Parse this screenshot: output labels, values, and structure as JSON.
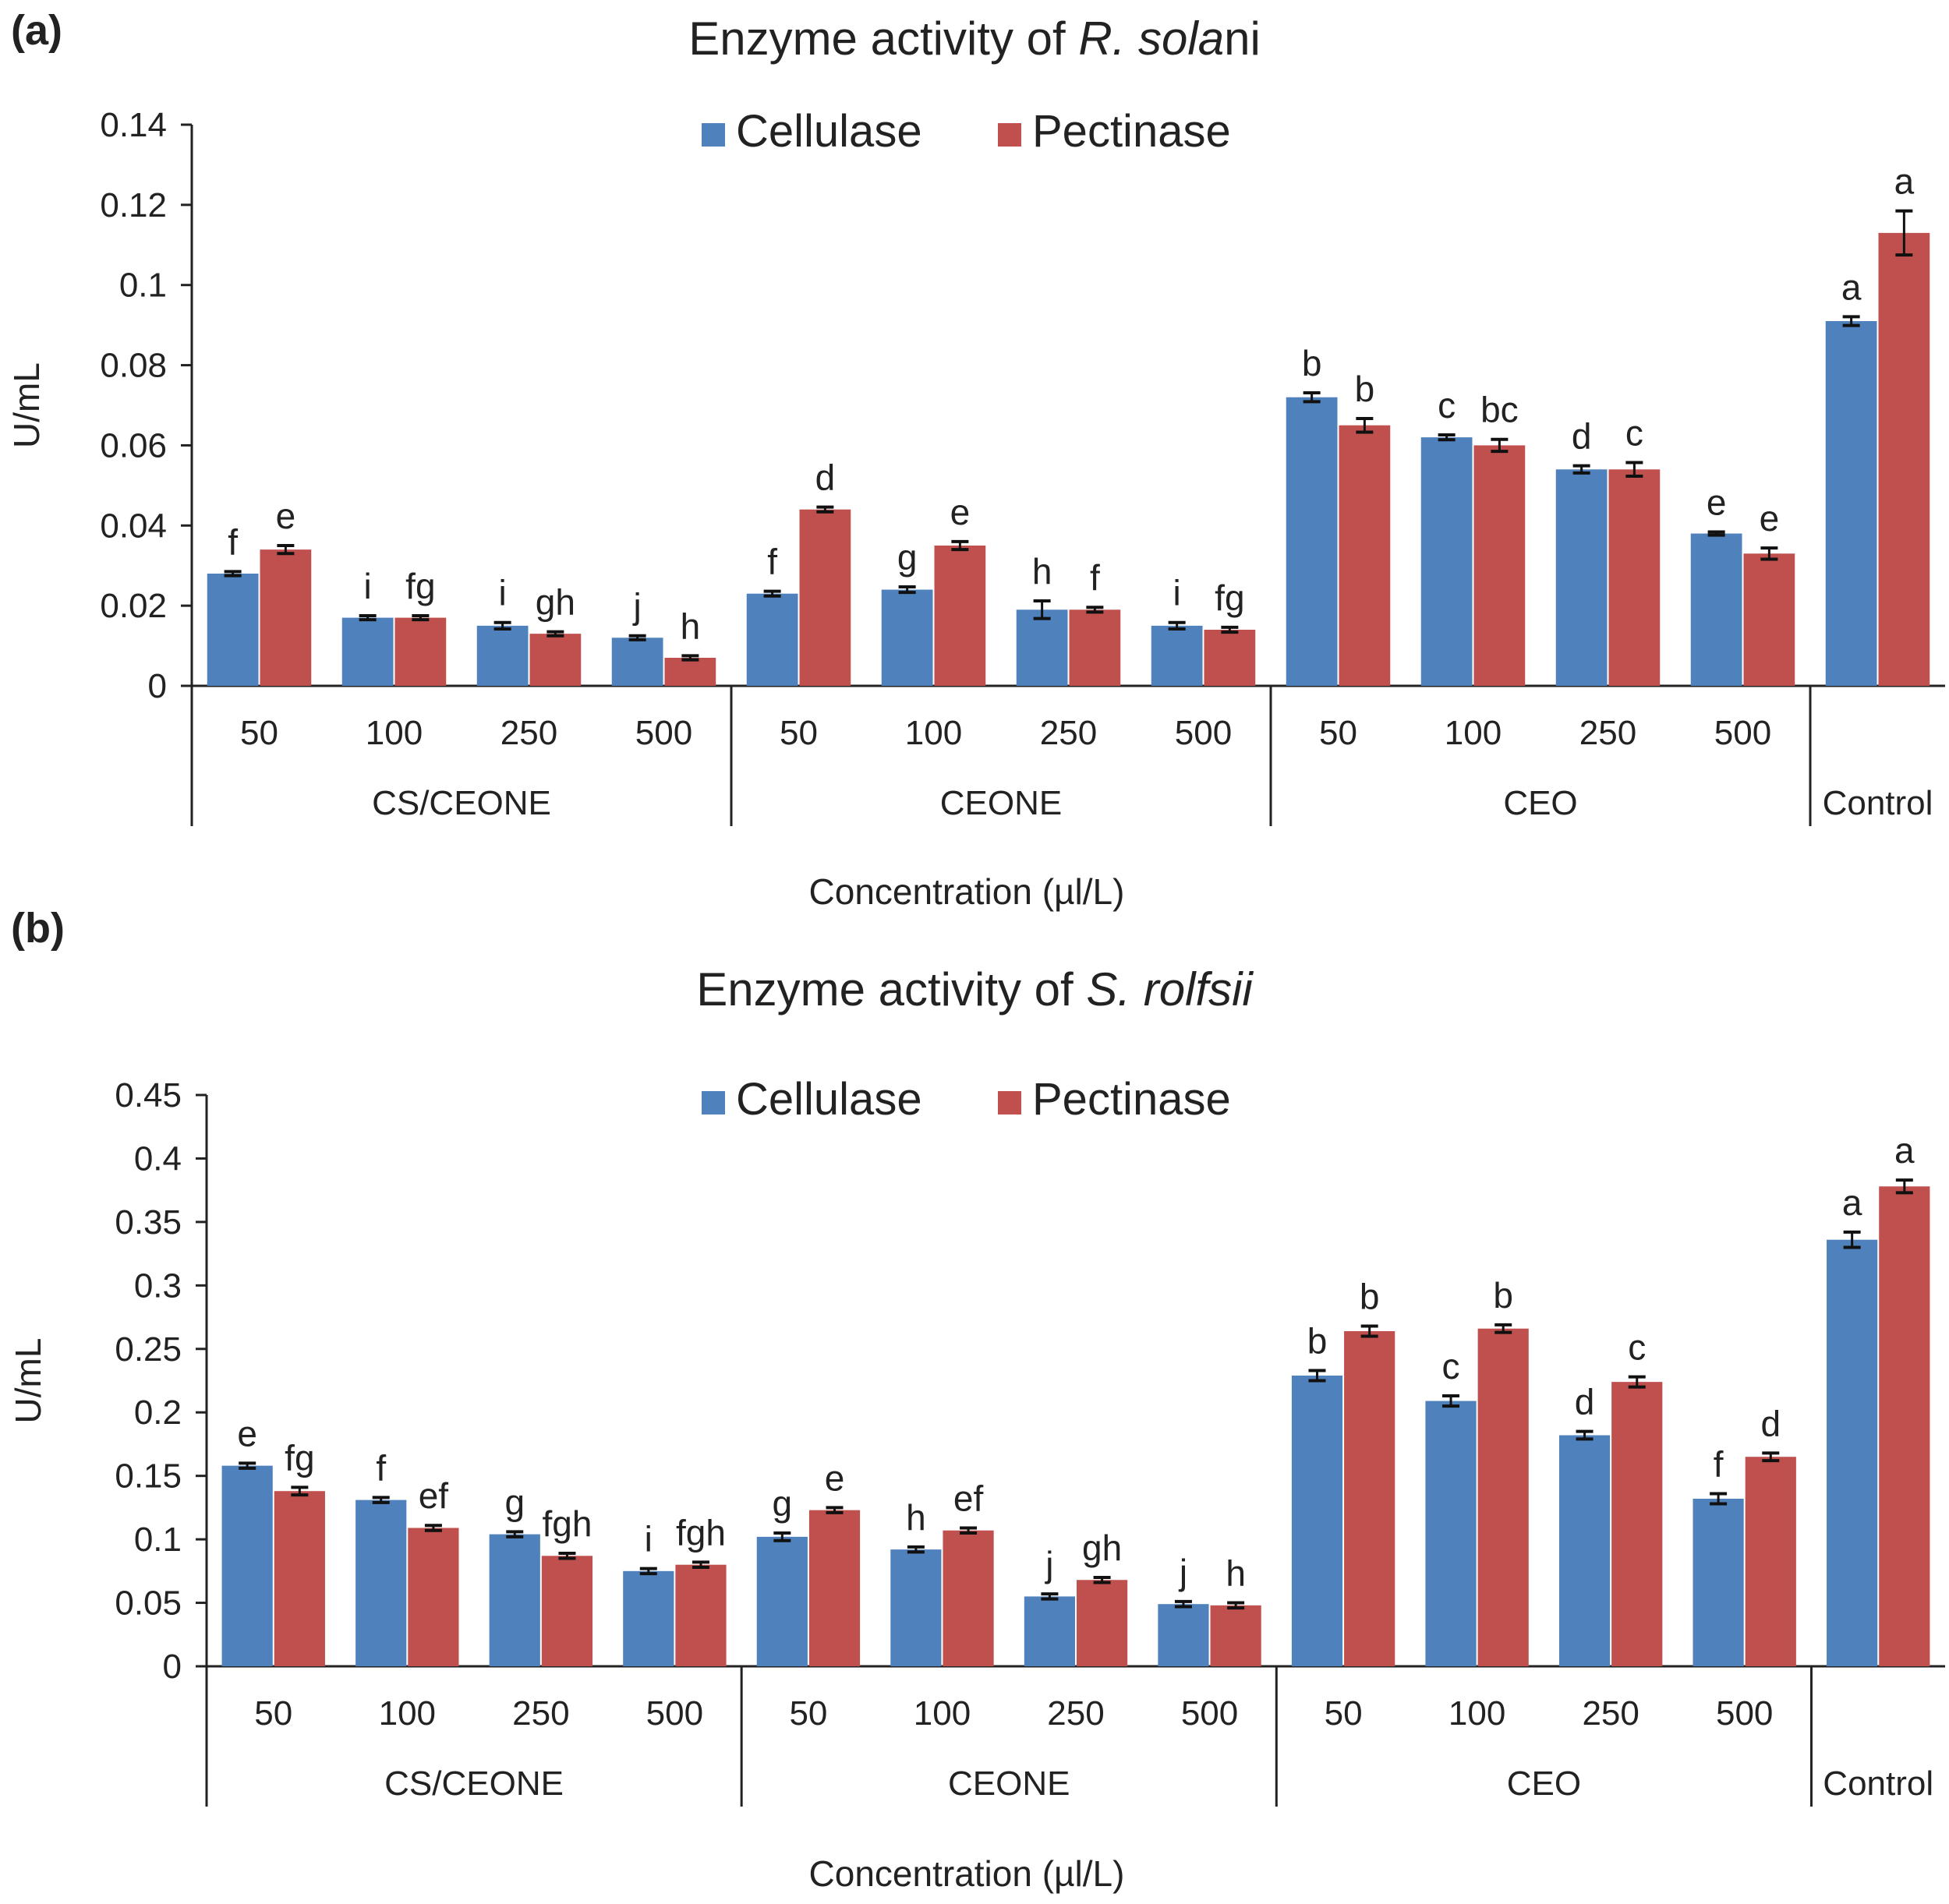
{
  "panels": [
    {
      "label": "(a)",
      "title_prefix": "Enzyme activity of ",
      "title_italic_1": "R. sola",
      "title_suffix": "ni",
      "ylabel": "U/mL",
      "xlabel": "Concentration (µl/L)"
    },
    {
      "label": "(b)",
      "title_prefix": "Enzyme activity of ",
      "title_italic_1": "S. rolfsii",
      "title_suffix": "",
      "ylabel": "U/mL",
      "xlabel": "Concentration (µl/L)"
    }
  ],
  "colors": {
    "cellulase": "#4F81BD",
    "pectinase": "#C0504D"
  },
  "chart_data": [
    {
      "type": "bar",
      "title": "Enzyme activity of R. solani",
      "xlabel": "Concentration (µl/L)",
      "ylabel": "U/mL",
      "ylim": [
        0,
        0.14
      ],
      "yticks": [
        "0",
        "0.02",
        "0.04",
        "0.06",
        "0.08",
        "0.1",
        "0.12",
        "0.14"
      ],
      "legend_position": "top-center",
      "groups": [
        {
          "name": "CS/CEONE",
          "categories": [
            "50",
            "100",
            "250",
            "500"
          ]
        },
        {
          "name": "CEONE",
          "categories": [
            "50",
            "100",
            "250",
            "500"
          ]
        },
        {
          "name": "CEO",
          "categories": [
            "50",
            "100",
            "250",
            "500"
          ]
        },
        {
          "name": "Control",
          "categories": [
            ""
          ]
        }
      ],
      "series": [
        {
          "name": "Cellulase",
          "values": [
            0.028,
            0.017,
            0.015,
            0.012,
            0.023,
            0.024,
            0.019,
            0.015,
            0.072,
            0.062,
            0.054,
            0.038,
            0.091
          ],
          "errors": [
            0.0005,
            0.0005,
            0.0008,
            0.0005,
            0.0006,
            0.0007,
            0.0022,
            0.0008,
            0.0011,
            0.0006,
            0.0009,
            0.0004,
            0.0011
          ],
          "labels": [
            "f",
            "i",
            "i",
            "j",
            "f",
            "g",
            "h",
            "i",
            "b",
            "c",
            "d",
            "e",
            "a"
          ]
        },
        {
          "name": "Pectinase",
          "values": [
            0.034,
            0.017,
            0.013,
            0.007,
            0.044,
            0.035,
            0.019,
            0.014,
            0.065,
            0.06,
            0.054,
            0.033,
            0.113
          ],
          "errors": [
            0.001,
            0.0005,
            0.0005,
            0.0005,
            0.0006,
            0.001,
            0.0006,
            0.0006,
            0.0017,
            0.0015,
            0.0017,
            0.0014,
            0.0055
          ],
          "labels": [
            "e",
            "fg",
            "gh",
            "h",
            "d",
            "e",
            "f",
            "fg",
            "b",
            "bc",
            "c",
            "e",
            "a"
          ]
        }
      ]
    },
    {
      "type": "bar",
      "title": "Enzyme activity of S. rolfsii",
      "xlabel": "Concentration (µl/L)",
      "ylabel": "U/mL",
      "ylim": [
        0,
        0.45
      ],
      "yticks": [
        "0",
        "0.05",
        "0.1",
        "0.15",
        "0.2",
        "0.25",
        "0.3",
        "0.35",
        "0.4",
        "0.45"
      ],
      "legend_position": "top-center",
      "groups": [
        {
          "name": "CS/CEONE",
          "categories": [
            "50",
            "100",
            "250",
            "500"
          ]
        },
        {
          "name": "CEONE",
          "categories": [
            "50",
            "100",
            "250",
            "500"
          ]
        },
        {
          "name": "CEO",
          "categories": [
            "50",
            "100",
            "250",
            "500"
          ]
        },
        {
          "name": "Control",
          "categories": [
            ""
          ]
        }
      ],
      "series": [
        {
          "name": "Cellulase",
          "values": [
            0.158,
            0.131,
            0.104,
            0.075,
            0.102,
            0.092,
            0.055,
            0.049,
            0.229,
            0.209,
            0.182,
            0.132,
            0.336
          ],
          "errors": [
            0.002,
            0.002,
            0.002,
            0.002,
            0.003,
            0.002,
            0.002,
            0.002,
            0.004,
            0.004,
            0.003,
            0.004,
            0.006
          ],
          "labels": [
            "e",
            "f",
            "g",
            "i",
            "g",
            "h",
            "j",
            "j",
            "b",
            "c",
            "d",
            "f",
            "a"
          ]
        },
        {
          "name": "Pectinase",
          "values": [
            0.138,
            0.109,
            0.087,
            0.08,
            0.123,
            0.107,
            0.068,
            0.048,
            0.264,
            0.266,
            0.224,
            0.165,
            0.378
          ],
          "errors": [
            0.003,
            0.002,
            0.002,
            0.002,
            0.002,
            0.002,
            0.002,
            0.002,
            0.004,
            0.003,
            0.004,
            0.003,
            0.005
          ],
          "labels": [
            "fg",
            "ef",
            "fgh",
            "fgh",
            "e",
            "ef",
            "gh",
            "h",
            "b",
            "b",
            "c",
            "d",
            "a"
          ]
        }
      ]
    }
  ]
}
